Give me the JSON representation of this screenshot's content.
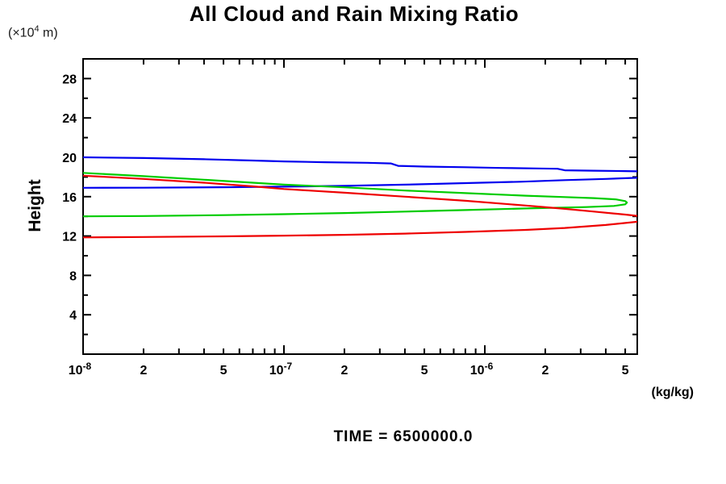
{
  "header": {
    "title": "All Cloud and Rain Mixing Ratio"
  },
  "axes": {
    "y_unit": {
      "prefix": "(×10",
      "sup": "4",
      "suffix": " m)"
    },
    "y_axis_label": "Height",
    "x_unit_label": "(kg/kg)"
  },
  "footer": {
    "time_label": "TIME = 6500000.0"
  },
  "colors": {
    "blue": "#0000ee",
    "green": "#00cc00",
    "red": "#ee0000",
    "axis": "#000000"
  },
  "chart_data": {
    "type": "line",
    "title": "All Cloud and Rain Mixing Ratio",
    "xlabel": "(kg/kg)",
    "ylabel": "Height (x10^4 m)",
    "caption": "TIME = 6500000.0",
    "x_scale": "log",
    "xlim": [
      1e-08,
      5.74e-06
    ],
    "ylim": [
      0,
      30
    ],
    "grid": false,
    "legend": "none",
    "x_ticks": [
      {
        "v": 1e-08,
        "major": true,
        "exp": "-8"
      },
      {
        "v": 2e-08,
        "label": "2"
      },
      {
        "v": 3e-08
      },
      {
        "v": 4e-08
      },
      {
        "v": 5e-08,
        "label": "5"
      },
      {
        "v": 6e-08
      },
      {
        "v": 7e-08
      },
      {
        "v": 8e-08
      },
      {
        "v": 9e-08
      },
      {
        "v": 1e-07,
        "major": true,
        "exp": "-7"
      },
      {
        "v": 2e-07,
        "label": "2"
      },
      {
        "v": 3e-07
      },
      {
        "v": 4e-07
      },
      {
        "v": 5e-07,
        "label": "5"
      },
      {
        "v": 6e-07
      },
      {
        "v": 7e-07
      },
      {
        "v": 8e-07
      },
      {
        "v": 9e-07
      },
      {
        "v": 1e-06,
        "major": true,
        "exp": "-6"
      },
      {
        "v": 2e-06,
        "label": "2"
      },
      {
        "v": 3e-06
      },
      {
        "v": 4e-06
      },
      {
        "v": 5e-06,
        "label": "5"
      }
    ],
    "y_ticks": [
      {
        "v": 2
      },
      {
        "v": 4,
        "label": "4"
      },
      {
        "v": 6
      },
      {
        "v": 8,
        "label": "8"
      },
      {
        "v": 10
      },
      {
        "v": 12,
        "label": "12"
      },
      {
        "v": 14
      },
      {
        "v": 16,
        "label": "16"
      },
      {
        "v": 18
      },
      {
        "v": 20,
        "label": "20"
      },
      {
        "v": 22
      },
      {
        "v": 24,
        "label": "24"
      },
      {
        "v": 26
      },
      {
        "v": 28,
        "label": "28"
      }
    ],
    "series": [
      {
        "name": "blue-series",
        "color": "#0000ee",
        "points": [
          [
            1e-08,
            20.0
          ],
          [
            2e-08,
            19.93
          ],
          [
            4e-08,
            19.8
          ],
          [
            7e-08,
            19.67
          ],
          [
            1e-07,
            19.58
          ],
          [
            1.6e-07,
            19.5
          ],
          [
            2.6e-07,
            19.44
          ],
          [
            3.4e-07,
            19.38
          ],
          [
            3.7e-07,
            19.13
          ],
          [
            5e-07,
            19.06
          ],
          [
            8e-07,
            18.99
          ],
          [
            1.2e-06,
            18.92
          ],
          [
            1.8e-06,
            18.87
          ],
          [
            2.3e-06,
            18.84
          ],
          [
            2.5e-06,
            18.68
          ],
          [
            3.5e-06,
            18.64
          ],
          [
            5e-06,
            18.6
          ],
          [
            5.74e-06,
            18.57
          ],
          [
            7.5e-06,
            18.45
          ],
          [
            7.5e-06,
            18.05
          ],
          [
            5.74e-06,
            17.92
          ],
          [
            4e-06,
            17.8
          ],
          [
            2.5e-06,
            17.68
          ],
          [
            1.5e-06,
            17.52
          ],
          [
            8e-07,
            17.38
          ],
          [
            4e-07,
            17.22
          ],
          [
            2e-07,
            17.1
          ],
          [
            1e-07,
            17.02
          ],
          [
            5e-08,
            16.96
          ],
          [
            2e-08,
            16.91
          ],
          [
            1e-08,
            16.9
          ]
        ]
      },
      {
        "name": "green-series",
        "color": "#00cc00",
        "points": [
          [
            1e-08,
            18.42
          ],
          [
            2e-08,
            18.08
          ],
          [
            4e-08,
            17.72
          ],
          [
            7e-08,
            17.42
          ],
          [
            1e-07,
            17.22
          ],
          [
            2e-07,
            16.95
          ],
          [
            4e-07,
            16.62
          ],
          [
            8e-07,
            16.36
          ],
          [
            1.6e-06,
            16.1
          ],
          [
            2.5e-06,
            15.96
          ],
          [
            3.5e-06,
            15.85
          ],
          [
            4.5e-06,
            15.72
          ],
          [
            5e-06,
            15.55
          ],
          [
            5.1e-06,
            15.4
          ],
          [
            5e-06,
            15.22
          ],
          [
            4.4e-06,
            15.06
          ],
          [
            3.2e-06,
            14.94
          ],
          [
            1.6e-06,
            14.8
          ],
          [
            8e-07,
            14.64
          ],
          [
            4e-07,
            14.48
          ],
          [
            2e-07,
            14.34
          ],
          [
            1e-07,
            14.22
          ],
          [
            5e-08,
            14.12
          ],
          [
            2e-08,
            14.03
          ],
          [
            1e-08,
            14.0
          ]
        ]
      },
      {
        "name": "red-series",
        "color": "#ee0000",
        "points": [
          [
            1e-08,
            18.13
          ],
          [
            2e-08,
            17.8
          ],
          [
            4e-08,
            17.42
          ],
          [
            7e-08,
            17.05
          ],
          [
            1e-07,
            16.78
          ],
          [
            2e-07,
            16.4
          ],
          [
            4e-07,
            16.0
          ],
          [
            8e-07,
            15.58
          ],
          [
            1.6e-06,
            15.1
          ],
          [
            2.5e-06,
            14.76
          ],
          [
            3.5e-06,
            14.48
          ],
          [
            5e-06,
            14.18
          ],
          [
            5.74e-06,
            14.05
          ],
          [
            7e-06,
            13.85
          ],
          [
            7e-06,
            13.6
          ],
          [
            5.74e-06,
            13.45
          ],
          [
            4e-06,
            13.12
          ],
          [
            2.5e-06,
            12.82
          ],
          [
            1.6e-06,
            12.62
          ],
          [
            8e-07,
            12.42
          ],
          [
            4e-07,
            12.25
          ],
          [
            2e-07,
            12.12
          ],
          [
            1e-07,
            12.04
          ],
          [
            5e-08,
            11.97
          ],
          [
            2e-08,
            11.9
          ],
          [
            1e-08,
            11.86
          ]
        ]
      }
    ]
  }
}
